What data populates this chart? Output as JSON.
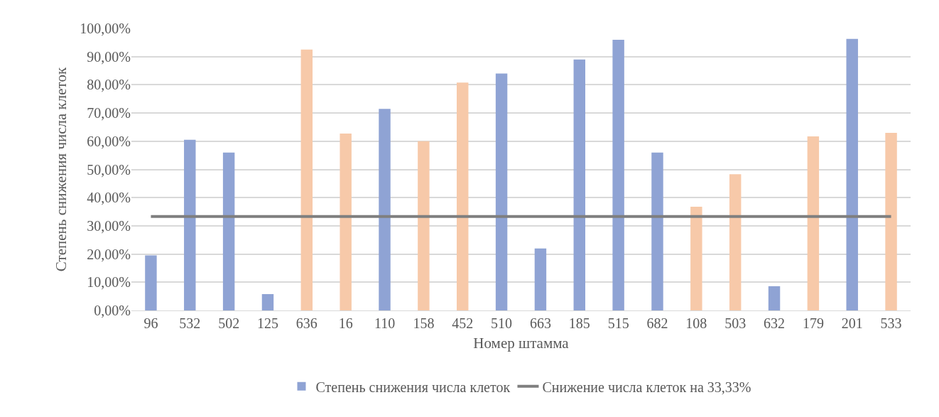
{
  "chart_data": {
    "type": "bar",
    "xlabel": "Номер штамма",
    "ylabel": "Степень снижения числа клеток",
    "categories": [
      "96",
      "532",
      "502",
      "125",
      "636",
      "16",
      "110",
      "158",
      "452",
      "510",
      "663",
      "185",
      "515",
      "682",
      "108",
      "503",
      "632",
      "179",
      "201",
      "533"
    ],
    "series": [
      {
        "name": "Степень снижения числа клеток",
        "colors": [
          "#8fa3d4",
          "#8fa3d4",
          "#8fa3d4",
          "#8fa3d4",
          "#f7c9a9",
          "#f7c9a9",
          "#8fa3d4",
          "#f7c9a9",
          "#f7c9a9",
          "#8fa3d4",
          "#8fa3d4",
          "#8fa3d4",
          "#8fa3d4",
          "#8fa3d4",
          "#f7c9a9",
          "#f7c9a9",
          "#8fa3d4",
          "#f7c9a9",
          "#8fa3d4",
          "#f7c9a9"
        ],
        "values": [
          19.5,
          60.5,
          56,
          5.8,
          92.5,
          62.7,
          71.5,
          60,
          80.8,
          84,
          22,
          89,
          96,
          56,
          36.8,
          48.3,
          8.6,
          61.7,
          96.3,
          63
        ]
      },
      {
        "name": "Снижение числа клеток на 33,33%",
        "type": "line",
        "color": "#7f7f7f",
        "values": [
          33.33,
          33.33,
          33.33,
          33.33,
          33.33,
          33.33,
          33.33,
          33.33,
          33.33,
          33.33,
          33.33,
          33.33,
          33.33,
          33.33,
          33.33,
          33.33,
          33.33,
          33.33,
          33.33,
          33.33
        ]
      }
    ],
    "ylim": [
      0,
      100
    ],
    "yticks": [
      {
        "value": 0,
        "label": "0,00%"
      },
      {
        "value": 10,
        "label": "10,00%"
      },
      {
        "value": 20,
        "label": "20,00%"
      },
      {
        "value": 30,
        "label": "30,00%"
      },
      {
        "value": 40,
        "label": "40,00%"
      },
      {
        "value": 50,
        "label": "50,00%"
      },
      {
        "value": 60,
        "label": "60,00%"
      },
      {
        "value": 70,
        "label": "70,00%"
      },
      {
        "value": 80,
        "label": "80,00%"
      },
      {
        "value": 90,
        "label": "90,00%"
      },
      {
        "value": 100,
        "label": "100,00%"
      }
    ],
    "grid": "y",
    "legend": "bottom",
    "marker": "none",
    "line_style": "solid"
  }
}
